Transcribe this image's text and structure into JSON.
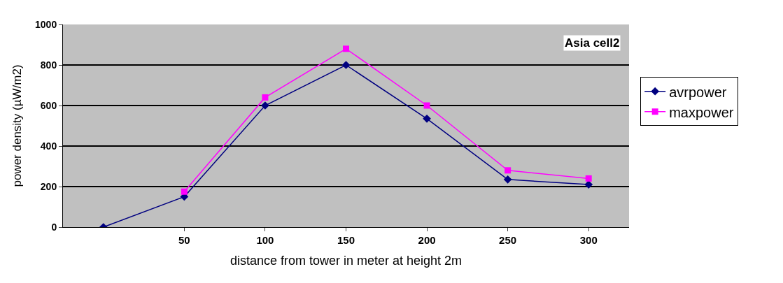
{
  "chart_data": {
    "type": "line",
    "xlabel": "distance from tower in meter at height 2m",
    "ylabel": "power density (µW/m2)",
    "categories": [
      null,
      "50",
      "100",
      "150",
      "200",
      "250",
      "300"
    ],
    "series": [
      {
        "name": "avrpower",
        "color": "#000080",
        "marker": "diamond",
        "values": [
          0,
          150,
          600,
          800,
          535,
          235,
          210
        ]
      },
      {
        "name": "maxpower",
        "color": "#ff00ff",
        "marker": "square",
        "values": [
          null,
          175,
          640,
          880,
          600,
          280,
          240
        ]
      }
    ],
    "ylim": [
      0,
      1000
    ],
    "yticks": [
      0,
      200,
      400,
      600,
      800,
      1000
    ],
    "grid": "y",
    "legend": "right",
    "annotations": [
      "Asia cell2"
    ]
  }
}
